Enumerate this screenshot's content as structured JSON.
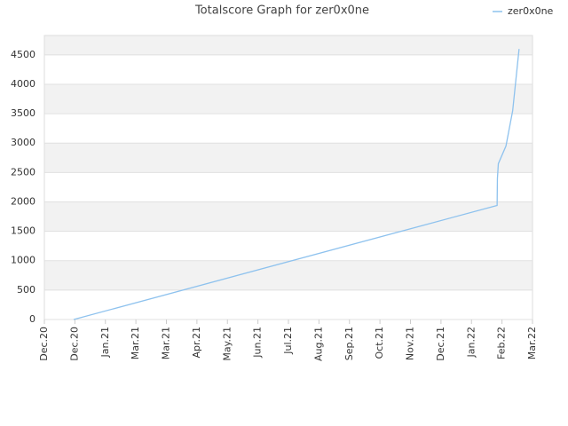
{
  "chart_data": {
    "type": "line",
    "title": "Totalscore Graph for zer0x0ne",
    "series": [
      {
        "name": "zer0x0ne",
        "color": "#8ec2ee",
        "x": [
          0.96,
          14.84,
          14.85,
          14.88,
          15.13,
          15.35,
          15.56
        ],
        "values": [
          0,
          1940,
          2400,
          2650,
          2950,
          3550,
          4600
        ]
      }
    ],
    "xlim": [
      0,
      16
    ],
    "xticks": [
      {
        "value": 0,
        "label": "Dec.20"
      },
      {
        "value": 1,
        "label": "Dec.20"
      },
      {
        "value": 2,
        "label": "Jan.21"
      },
      {
        "value": 3,
        "label": "Mar.21"
      },
      {
        "value": 4,
        "label": "Mar.21"
      },
      {
        "value": 5,
        "label": "Apr.21"
      },
      {
        "value": 6,
        "label": "May.21"
      },
      {
        "value": 7,
        "label": "Jun.21"
      },
      {
        "value": 8,
        "label": "Jul.21"
      },
      {
        "value": 9,
        "label": "Aug.21"
      },
      {
        "value": 10,
        "label": "Sep.21"
      },
      {
        "value": 11,
        "label": "Oct.21"
      },
      {
        "value": 12,
        "label": "Nov.21"
      },
      {
        "value": 13,
        "label": "Dec.21"
      },
      {
        "value": 14,
        "label": "Jan.22"
      },
      {
        "value": 15,
        "label": "Feb.22"
      },
      {
        "value": 16,
        "label": "Mar.22"
      }
    ],
    "ylim": [
      0,
      4830
    ],
    "yticks": [
      0,
      500,
      1000,
      1500,
      2000,
      2500,
      3000,
      3500,
      4000,
      4500
    ],
    "grid": true,
    "legend": "top-right"
  }
}
